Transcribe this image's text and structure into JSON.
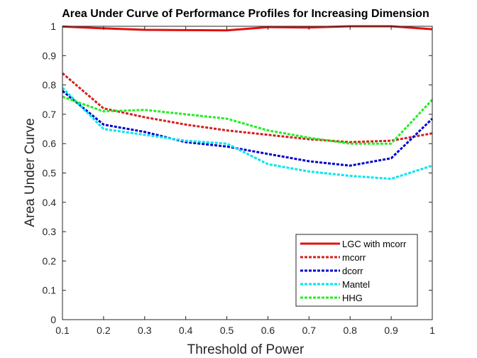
{
  "chart_data": {
    "type": "line",
    "title": "Area Under Curve of Performance Profiles for Increasing Dimension",
    "xlabel": "Threshold of Power",
    "ylabel": "Area Under Curve",
    "xlim": [
      0.1,
      1
    ],
    "ylim": [
      0,
      1
    ],
    "x_ticks": [
      "0.1",
      "0.2",
      "0.3",
      "0.4",
      "0.5",
      "0.6",
      "0.7",
      "0.8",
      "0.9",
      "1"
    ],
    "y_ticks": [
      "0",
      "0.1",
      "0.2",
      "0.3",
      "0.4",
      "0.5",
      "0.6",
      "0.7",
      "0.8",
      "0.9",
      "1"
    ],
    "grid": false,
    "legend_position": "bottom-right",
    "x": [
      0.1,
      0.2,
      0.3,
      0.4,
      0.5,
      0.6,
      0.7,
      0.8,
      0.9,
      1.0
    ],
    "series": [
      {
        "name": "LGC with mcorr",
        "color": "#e01010",
        "style": "solid",
        "values": [
          0.999,
          0.993,
          0.988,
          0.987,
          0.986,
          0.997,
          0.996,
          1.0,
          1.0,
          0.99
        ]
      },
      {
        "name": "mcorr",
        "color": "#d42020",
        "style": "dashed",
        "values": [
          0.84,
          0.72,
          0.69,
          0.665,
          0.645,
          0.63,
          0.615,
          0.605,
          0.61,
          0.635
        ]
      },
      {
        "name": "dcorr",
        "color": "#0000cc",
        "style": "dashed",
        "values": [
          0.78,
          0.665,
          0.64,
          0.605,
          0.59,
          0.565,
          0.54,
          0.525,
          0.55,
          0.685
        ]
      },
      {
        "name": "Mantel",
        "color": "#00e5ee",
        "style": "dashed",
        "values": [
          0.79,
          0.65,
          0.63,
          0.61,
          0.6,
          0.53,
          0.505,
          0.49,
          0.48,
          0.525
        ]
      },
      {
        "name": "HHG",
        "color": "#22ee22",
        "style": "dashed",
        "values": [
          0.76,
          0.71,
          0.715,
          0.7,
          0.685,
          0.645,
          0.62,
          0.6,
          0.6,
          0.75
        ]
      }
    ]
  }
}
